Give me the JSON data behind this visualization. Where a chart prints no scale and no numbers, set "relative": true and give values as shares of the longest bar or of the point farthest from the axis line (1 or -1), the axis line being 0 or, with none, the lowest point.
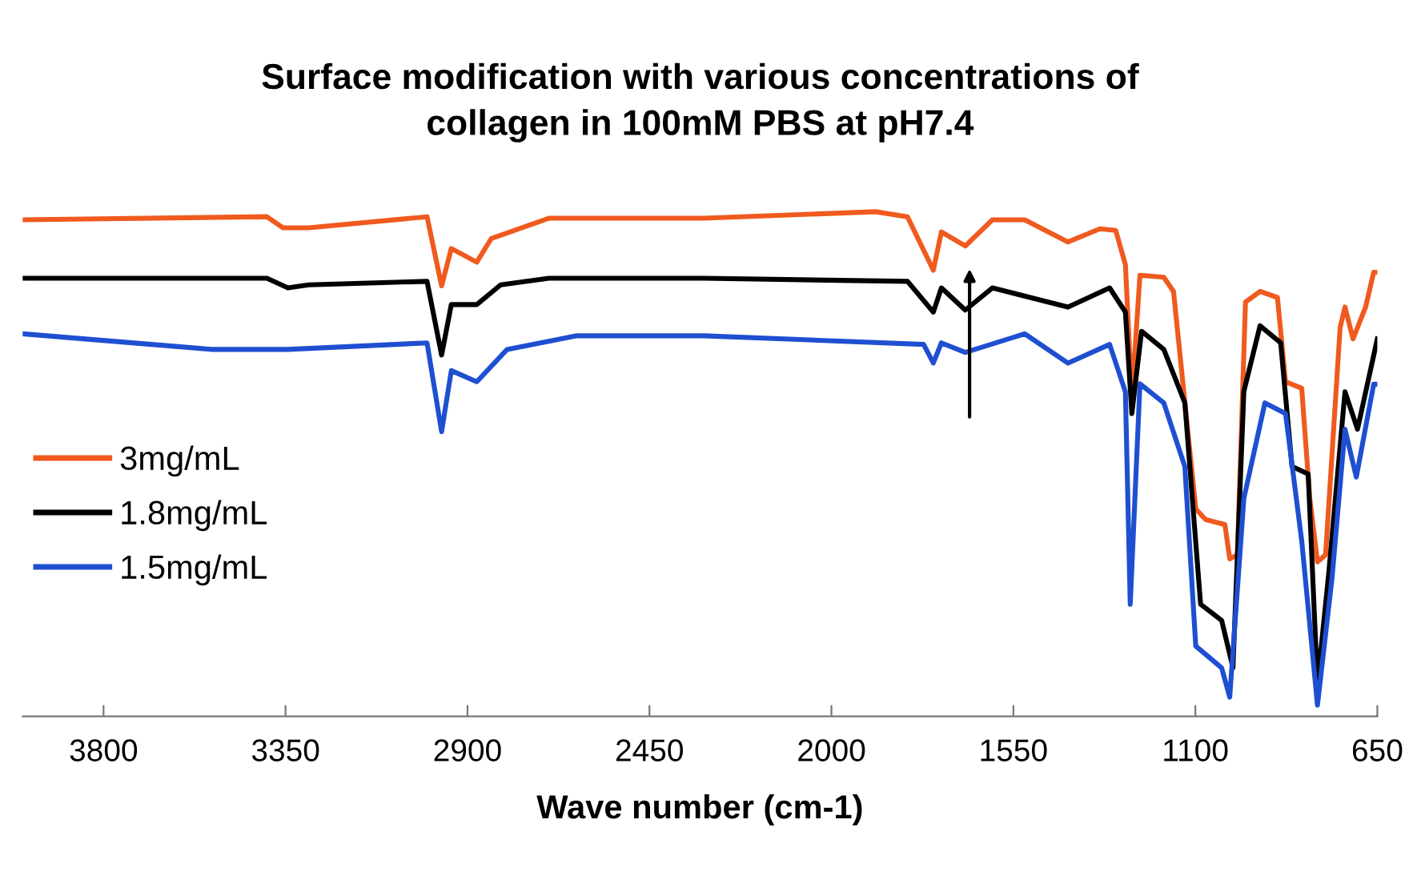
{
  "chart_data": {
    "type": "line",
    "title": "Surface modification with various concentrations of\ncollagen in 100mM PBS at pH7.4",
    "xlabel": "Wave number (cm-1)",
    "relative": true,
    "xlim": [
      4000,
      650
    ],
    "xticks": [
      3800,
      3350,
      2900,
      2450,
      2000,
      1550,
      1100,
      650
    ],
    "grid": false,
    "legend": "left",
    "tick_labels": "x",
    "line_style": "solid",
    "marker": "none",
    "series": [
      {
        "name": "3mg/mL",
        "color": "#f05a1e",
        "x": [
          4000,
          3396,
          3356,
          3293,
          3000,
          2964,
          2940,
          2877,
          2841,
          2699,
          2315,
          1891,
          1812,
          1748,
          1728,
          1669,
          1602,
          1522,
          1415,
          1336,
          1297,
          1273,
          1257,
          1237,
          1178,
          1154,
          1099,
          1075,
          1027,
          1015,
          996,
          976,
          940,
          897,
          877,
          837,
          817,
          798,
          778,
          742,
          730,
          710,
          679,
          659,
          650
        ],
        "values": [
          0.984,
          0.99,
          0.968,
          0.968,
          0.99,
          0.853,
          0.927,
          0.9,
          0.947,
          0.987,
          0.987,
          1,
          0.99,
          0.884,
          0.96,
          0.932,
          0.984,
          0.984,
          0.94,
          0.966,
          0.963,
          0.895,
          0.632,
          0.874,
          0.87,
          0.842,
          0.411,
          0.39,
          0.38,
          0.312,
          0.32,
          0.821,
          0.842,
          0.83,
          0.663,
          0.65,
          0.432,
          0.306,
          0.32,
          0.77,
          0.811,
          0.748,
          0.811,
          0.88,
          0.88
        ]
      },
      {
        "name": "1.8mg/mL",
        "color": "#000000",
        "x": [
          4000,
          3396,
          3344,
          3293,
          3000,
          2964,
          2940,
          2877,
          2818,
          2699,
          2315,
          1812,
          1748,
          1728,
          1669,
          1602,
          1415,
          1312,
          1273,
          1257,
          1233,
          1178,
          1126,
          1087,
          1035,
          1007,
          980,
          940,
          889,
          861,
          821,
          798,
          770,
          730,
          699,
          650
        ],
        "values": [
          0.868,
          0.868,
          0.849,
          0.855,
          0.862,
          0.716,
          0.816,
          0.816,
          0.855,
          0.868,
          0.868,
          0.862,
          0.801,
          0.849,
          0.805,
          0.849,
          0.811,
          0.849,
          0.801,
          0.6,
          0.763,
          0.727,
          0.621,
          0.222,
          0.19,
          0.096,
          0.644,
          0.774,
          0.74,
          0.495,
          0.48,
          0.064,
          0.285,
          0.643,
          0.569,
          0.748
        ]
      },
      {
        "name": "1.5mg/mL",
        "color": "#1f4fd1",
        "x": [
          4000,
          3531,
          3344,
          3000,
          2964,
          2940,
          2877,
          2802,
          2632,
          2315,
          1772,
          1748,
          1728,
          1669,
          1522,
          1415,
          1312,
          1273,
          1261,
          1237,
          1178,
          1126,
          1099,
          1035,
          1015,
          980,
          928,
          877,
          837,
          798,
          762,
          730,
          702,
          659,
          650
        ],
        "values": [
          0.758,
          0.727,
          0.727,
          0.74,
          0.564,
          0.685,
          0.663,
          0.727,
          0.754,
          0.754,
          0.737,
          0.7,
          0.74,
          0.721,
          0.758,
          0.7,
          0.737,
          0.643,
          0.222,
          0.659,
          0.621,
          0.495,
          0.139,
          0.096,
          0.038,
          0.432,
          0.621,
          0.6,
          0.348,
          0.022,
          0.274,
          0.569,
          0.474,
          0.658,
          0.658
        ]
      }
    ]
  }
}
